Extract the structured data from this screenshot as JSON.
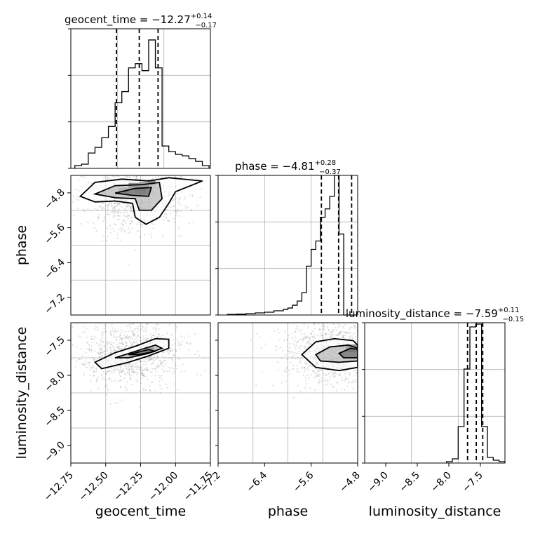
{
  "chart_data": [
    {
      "type": "histogram",
      "panel": "geocent_time-marginal",
      "title": "geocent_time = −12.27",
      "title_sup": "+0.14",
      "title_sub": "−0.17",
      "xlim": [
        -12.78,
        -11.74
      ],
      "ylim": [
        0,
        1
      ],
      "bin_edges": [
        -12.75,
        -12.7,
        -12.65,
        -12.6,
        -12.55,
        -12.5,
        -12.45,
        -12.4,
        -12.35,
        -12.3,
        -12.25,
        -12.2,
        -12.15,
        -12.1,
        -12.05,
        -12.0,
        -11.95,
        -11.9,
        -11.85,
        -11.8,
        -11.75
      ],
      "counts": [
        0.02,
        0.03,
        0.11,
        0.15,
        0.22,
        0.3,
        0.47,
        0.55,
        0.72,
        0.75,
        0.7,
        0.92,
        0.72,
        0.16,
        0.12,
        0.1,
        0.09,
        0.07,
        0.05,
        0.02
      ],
      "quantiles": [
        -12.44,
        -12.27,
        -12.13
      ],
      "grid": true
    },
    {
      "type": "histogram",
      "panel": "phase-marginal",
      "title": "phase = −4.81",
      "title_sup": "+0.28",
      "title_sub": "−0.37",
      "xlim": [
        -7.4,
        -4.4
      ],
      "ylim": [
        0,
        1
      ],
      "bin_edges": [
        -7.2,
        -7.0,
        -6.8,
        -6.6,
        -6.4,
        -6.2,
        -6.0,
        -5.9,
        -5.8,
        -5.7,
        -5.6,
        -5.5,
        -5.4,
        -5.3,
        -5.2,
        -5.1,
        -5.0,
        -4.9,
        -4.8,
        -4.7,
        -4.6,
        -4.5,
        -4.4
      ],
      "counts": [
        0.004,
        0.006,
        0.01,
        0.015,
        0.02,
        0.03,
        0.04,
        0.05,
        0.07,
        0.1,
        0.16,
        0.35,
        0.47,
        0.53,
        0.7,
        0.76,
        0.85,
        1.0,
        0.58,
        0.0,
        0.0,
        0.0
      ],
      "quantiles": [
        -5.18,
        -4.81,
        -4.53
      ],
      "grid": true
    },
    {
      "type": "histogram",
      "panel": "luminosity_distance-marginal",
      "title": "luminosity_distance = −7.59",
      "title_sup": "+0.11",
      "title_sub": "−0.15",
      "xlim": [
        -9.5,
        -7.1
      ],
      "ylim": [
        0,
        1
      ],
      "bin_edges": [
        -8.1,
        -8.0,
        -7.9,
        -7.8,
        -7.7,
        -7.6,
        -7.5,
        -7.4,
        -7.3,
        -7.2,
        -7.1
      ],
      "counts": [
        0.01,
        0.03,
        0.26,
        0.67,
        0.97,
        0.99,
        0.26,
        0.04,
        0.02,
        0.01
      ],
      "quantiles": [
        -7.74,
        -7.59,
        -7.48
      ],
      "grid": true
    },
    {
      "type": "scatter",
      "panel": "phase-vs-geocent_time",
      "xlabel": "",
      "ylabel": "phase",
      "xlim": [
        -12.78,
        -11.74
      ],
      "ylim": [
        -7.4,
        -4.4
      ],
      "yticks": [
        "−4.8",
        "−5.6",
        "−6.4",
        "−7.2"
      ],
      "contours": [
        [
          [
            -12.71,
            -4.85
          ],
          [
            -12.6,
            -4.55
          ],
          [
            -12.4,
            -4.48
          ],
          [
            -12.2,
            -4.52
          ],
          [
            -12.05,
            -4.45
          ],
          [
            -11.8,
            -4.52
          ],
          [
            -12.0,
            -4.75
          ],
          [
            -12.05,
            -5.0
          ],
          [
            -12.12,
            -5.3
          ],
          [
            -12.22,
            -5.45
          ],
          [
            -12.3,
            -5.3
          ],
          [
            -12.32,
            -5.0
          ],
          [
            -12.45,
            -4.95
          ],
          [
            -12.6,
            -4.97
          ],
          [
            -12.71,
            -4.85
          ]
        ],
        [
          [
            -12.6,
            -4.8
          ],
          [
            -12.45,
            -4.62
          ],
          [
            -12.25,
            -4.6
          ],
          [
            -12.12,
            -4.55
          ],
          [
            -12.1,
            -4.9
          ],
          [
            -12.18,
            -5.15
          ],
          [
            -12.27,
            -5.15
          ],
          [
            -12.3,
            -4.9
          ],
          [
            -12.45,
            -4.88
          ],
          [
            -12.6,
            -4.8
          ]
        ],
        [
          [
            -12.45,
            -4.78
          ],
          [
            -12.3,
            -4.68
          ],
          [
            -12.18,
            -4.66
          ],
          [
            -12.2,
            -4.85
          ],
          [
            -12.32,
            -4.83
          ],
          [
            -12.45,
            -4.78
          ]
        ]
      ],
      "density_blocks": [
        {
          "x": -12.35,
          "y": -4.62,
          "w": 0.08,
          "h": 0.12,
          "shade": 0.9
        },
        {
          "x": -12.27,
          "y": -4.6,
          "w": 0.07,
          "h": 0.12,
          "shade": 0.85
        },
        {
          "x": -12.2,
          "y": -4.55,
          "w": 0.05,
          "h": 0.1,
          "shade": 0.95
        },
        {
          "x": -12.42,
          "y": -4.72,
          "w": 0.07,
          "h": 0.1,
          "shade": 0.55
        },
        {
          "x": -12.3,
          "y": -4.74,
          "w": 0.08,
          "h": 0.1,
          "shade": 0.5
        }
      ]
    },
    {
      "type": "scatter",
      "panel": "luminosity_distance-vs-geocent_time",
      "xlabel": "geocent_time",
      "ylabel": "luminosity_distance",
      "xlim": [
        -12.78,
        -11.74
      ],
      "ylim": [
        -9.3,
        -7.1
      ],
      "xticks": [
        "−12.75",
        "−12.50",
        "−12.25",
        "−12.00",
        "−11.75"
      ],
      "yticks": [
        "−7.5",
        "−8.0",
        "−8.5",
        "−9.0"
      ],
      "contours": [
        [
          [
            -12.6,
            -7.72
          ],
          [
            -12.45,
            -7.57
          ],
          [
            -12.3,
            -7.47
          ],
          [
            -12.15,
            -7.35
          ],
          [
            -12.05,
            -7.36
          ],
          [
            -12.05,
            -7.5
          ],
          [
            -12.2,
            -7.62
          ],
          [
            -12.35,
            -7.72
          ],
          [
            -12.55,
            -7.82
          ],
          [
            -12.6,
            -7.72
          ]
        ],
        [
          [
            -12.45,
            -7.65
          ],
          [
            -12.3,
            -7.55
          ],
          [
            -12.15,
            -7.45
          ],
          [
            -12.1,
            -7.5
          ],
          [
            -12.2,
            -7.58
          ],
          [
            -12.35,
            -7.65
          ],
          [
            -12.45,
            -7.65
          ]
        ],
        [
          [
            -12.35,
            -7.6
          ],
          [
            -12.2,
            -7.52
          ],
          [
            -12.15,
            -7.55
          ],
          [
            -12.28,
            -7.6
          ],
          [
            -12.35,
            -7.6
          ]
        ]
      ],
      "density_blocks": [
        {
          "x": -12.23,
          "y": -7.52,
          "w": 0.07,
          "h": 0.08,
          "shade": 0.9
        },
        {
          "x": -12.3,
          "y": -7.57,
          "w": 0.06,
          "h": 0.06,
          "shade": 0.5
        }
      ]
    },
    {
      "type": "scatter",
      "panel": "luminosity_distance-vs-phase",
      "xlabel": "phase",
      "ylabel": "",
      "xlim": [
        -7.4,
        -4.4
      ],
      "ylim": [
        -9.3,
        -7.1
      ],
      "xticks": [
        "−7.2",
        "−6.4",
        "−5.6",
        "−4.8"
      ],
      "contours": [
        [
          [
            -5.6,
            -7.6
          ],
          [
            -5.3,
            -7.4
          ],
          [
            -4.9,
            -7.35
          ],
          [
            -4.5,
            -7.38
          ],
          [
            -4.4,
            -7.45
          ],
          [
            -4.4,
            -7.8
          ],
          [
            -4.8,
            -7.85
          ],
          [
            -5.3,
            -7.8
          ],
          [
            -5.6,
            -7.6
          ]
        ],
        [
          [
            -5.3,
            -7.6
          ],
          [
            -5.0,
            -7.48
          ],
          [
            -4.6,
            -7.45
          ],
          [
            -4.4,
            -7.5
          ],
          [
            -4.4,
            -7.7
          ],
          [
            -4.8,
            -7.72
          ],
          [
            -5.2,
            -7.7
          ],
          [
            -5.3,
            -7.6
          ]
        ],
        [
          [
            -4.8,
            -7.58
          ],
          [
            -4.55,
            -7.5
          ],
          [
            -4.4,
            -7.52
          ],
          [
            -4.4,
            -7.65
          ],
          [
            -4.7,
            -7.65
          ],
          [
            -4.8,
            -7.58
          ]
        ]
      ],
      "density_blocks": [
        {
          "x": -4.65,
          "y": -7.5,
          "w": 0.25,
          "h": 0.12,
          "shade": 0.9
        }
      ]
    }
  ]
}
